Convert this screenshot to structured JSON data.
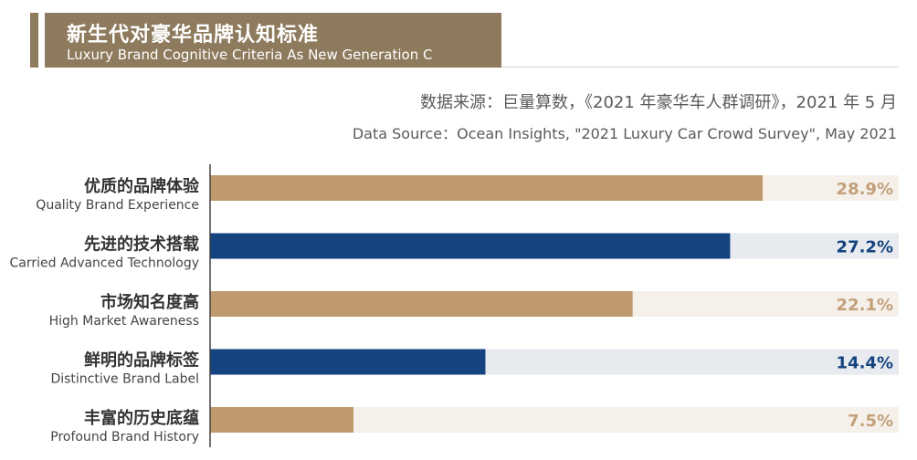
{
  "header": {
    "title_cn": "新生代对豪华品牌认知标准",
    "title_en": "Luxury Brand Cognitive Criteria As New Generation C"
  },
  "source": {
    "cn": "数据来源：巨量算数，《2021 年豪华车人群调研》，2021 年 5 月",
    "en": "Data Source：Ocean Insights, \"2021 Luxury Car Crowd Survey\", May 2021"
  },
  "colors": {
    "tan": "#c09a6e",
    "tan_track": "#f5f0ea",
    "tan_label": "#c3a07a",
    "navy": "#15437f",
    "navy_track": "#e7eaef",
    "navy_label": "#15437f",
    "axis": "#444444",
    "header_bg": "#8e7a5d"
  },
  "chart_data": {
    "type": "bar",
    "orientation": "horizontal",
    "title": "新生代对豪华品牌认知标准",
    "subtitle": "Luxury Brand Cognitive Criteria As New Generation C",
    "xlim": [
      0,
      30
    ],
    "unit": "%",
    "categories": [
      {
        "label_cn": "优质的品牌体验",
        "label_en": "Quality Brand Experience"
      },
      {
        "label_cn": "先进的技术搭载",
        "label_en": "Carried Advanced Technology"
      },
      {
        "label_cn": "市场知名度高",
        "label_en": "High Market Awareness"
      },
      {
        "label_cn": "鲜明的品牌标签",
        "label_en": "Distinctive Brand Label"
      },
      {
        "label_cn": "丰富的历史底蕴",
        "label_en": "Profound Brand History"
      }
    ],
    "values": [
      28.9,
      27.2,
      22.1,
      14.4,
      7.5
    ],
    "value_labels": [
      "28.9%",
      "27.2%",
      "22.1%",
      "14.4%",
      "7.5%"
    ],
    "bar_colors": [
      "tan",
      "navy",
      "tan",
      "navy",
      "tan"
    ]
  }
}
